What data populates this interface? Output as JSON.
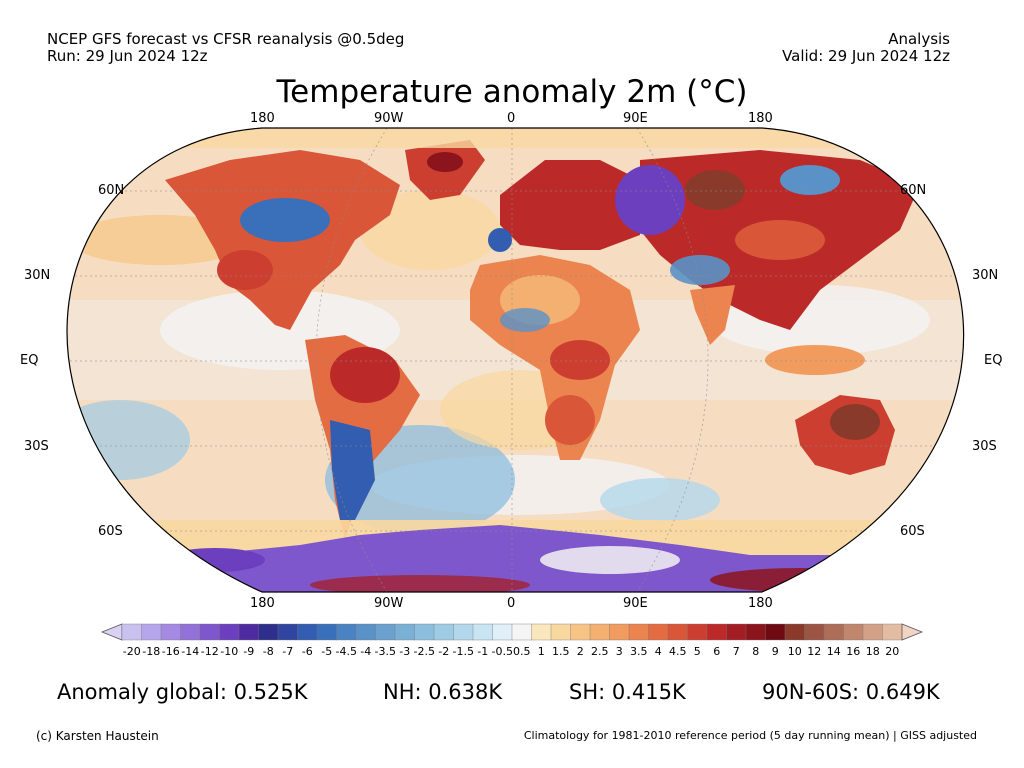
{
  "header": {
    "left_line1": "NCEP GFS forecast vs CFSR reanalysis @0.5deg",
    "left_line2": "Run: 29 Jun 2024 12z",
    "right_line1": "Analysis",
    "right_line2": "Valid: 29 Jun 2024 12z"
  },
  "title": "Temperature anomaly 2m (°C)",
  "map": {
    "projection": "Robinson",
    "top_lon_labels": [
      "180",
      "90W",
      "0",
      "90E",
      "180"
    ],
    "bottom_lon_labels": [
      "180",
      "90W",
      "0",
      "90E",
      "180"
    ],
    "left_lat_labels": [
      "60N",
      "30N",
      "EQ",
      "30S",
      "60S"
    ],
    "right_lat_labels": [
      "60N",
      "30N",
      "EQ",
      "30S",
      "60S"
    ],
    "colors": {
      "ocean_base": "#f6dcc0",
      "ocean_neutral": "#f2f2f2",
      "coast": "#222222",
      "warm_strong": "#c8322d",
      "warm": "#ef8a5a",
      "hot_brown": "#8b4a3c",
      "cool": "#5b86c4",
      "cold": "#3f3fa6",
      "cold_purple": "#7a4fd0"
    }
  },
  "colorbar": {
    "labels": [
      "-20",
      "-18",
      "-16",
      "-14",
      "-12",
      "-10",
      "-9",
      "-8",
      "-7",
      "-6",
      "-5",
      "-4.5",
      "-4",
      "-3.5",
      "-3",
      "-2.5",
      "-2",
      "-1.5",
      "-1",
      "-0.5",
      "0.5",
      "1",
      "1.5",
      "2",
      "2.5",
      "3",
      "3.5",
      "4",
      "4.5",
      "5",
      "6",
      "7",
      "8",
      "9",
      "10",
      "12",
      "14",
      "16",
      "18",
      "20"
    ],
    "colors": [
      "#c9c2ef",
      "#b5a5ea",
      "#a48ae3",
      "#9372d8",
      "#7f57cc",
      "#6b3fbd",
      "#4e2b9f",
      "#2e2f8a",
      "#2f459f",
      "#335db0",
      "#3a6fba",
      "#4a82c2",
      "#5a92c8",
      "#6aa1cf",
      "#7bb0d6",
      "#8cbedd",
      "#9fcbe5",
      "#b3d8ec",
      "#c9e4f2",
      "#e0eff8",
      "#f5f5f5",
      "#fbe7bd",
      "#f9d8a0",
      "#f7c486",
      "#f4b071",
      "#f19b5f",
      "#ec844f",
      "#e46c42",
      "#d95638",
      "#cc3f30",
      "#bb2a29",
      "#a51d24",
      "#8c141c",
      "#6e0b12",
      "#8a3a2a",
      "#9c5444",
      "#ae6d58",
      "#c1876e",
      "#d3a187",
      "#e3bca4"
    ],
    "under_color": "#d9d2f5",
    "over_color": "#f1d4c4"
  },
  "stats": {
    "global": "Anomaly global: 0.525K",
    "nh": "NH: 0.638K",
    "sh": "SH: 0.415K",
    "polar": "90N-60S: 0.649K"
  },
  "footer": {
    "credit": "(c) Karsten Haustein",
    "climatology": "Climatology for 1981-2010 reference period (5 day running mean) | GISS adjusted"
  }
}
